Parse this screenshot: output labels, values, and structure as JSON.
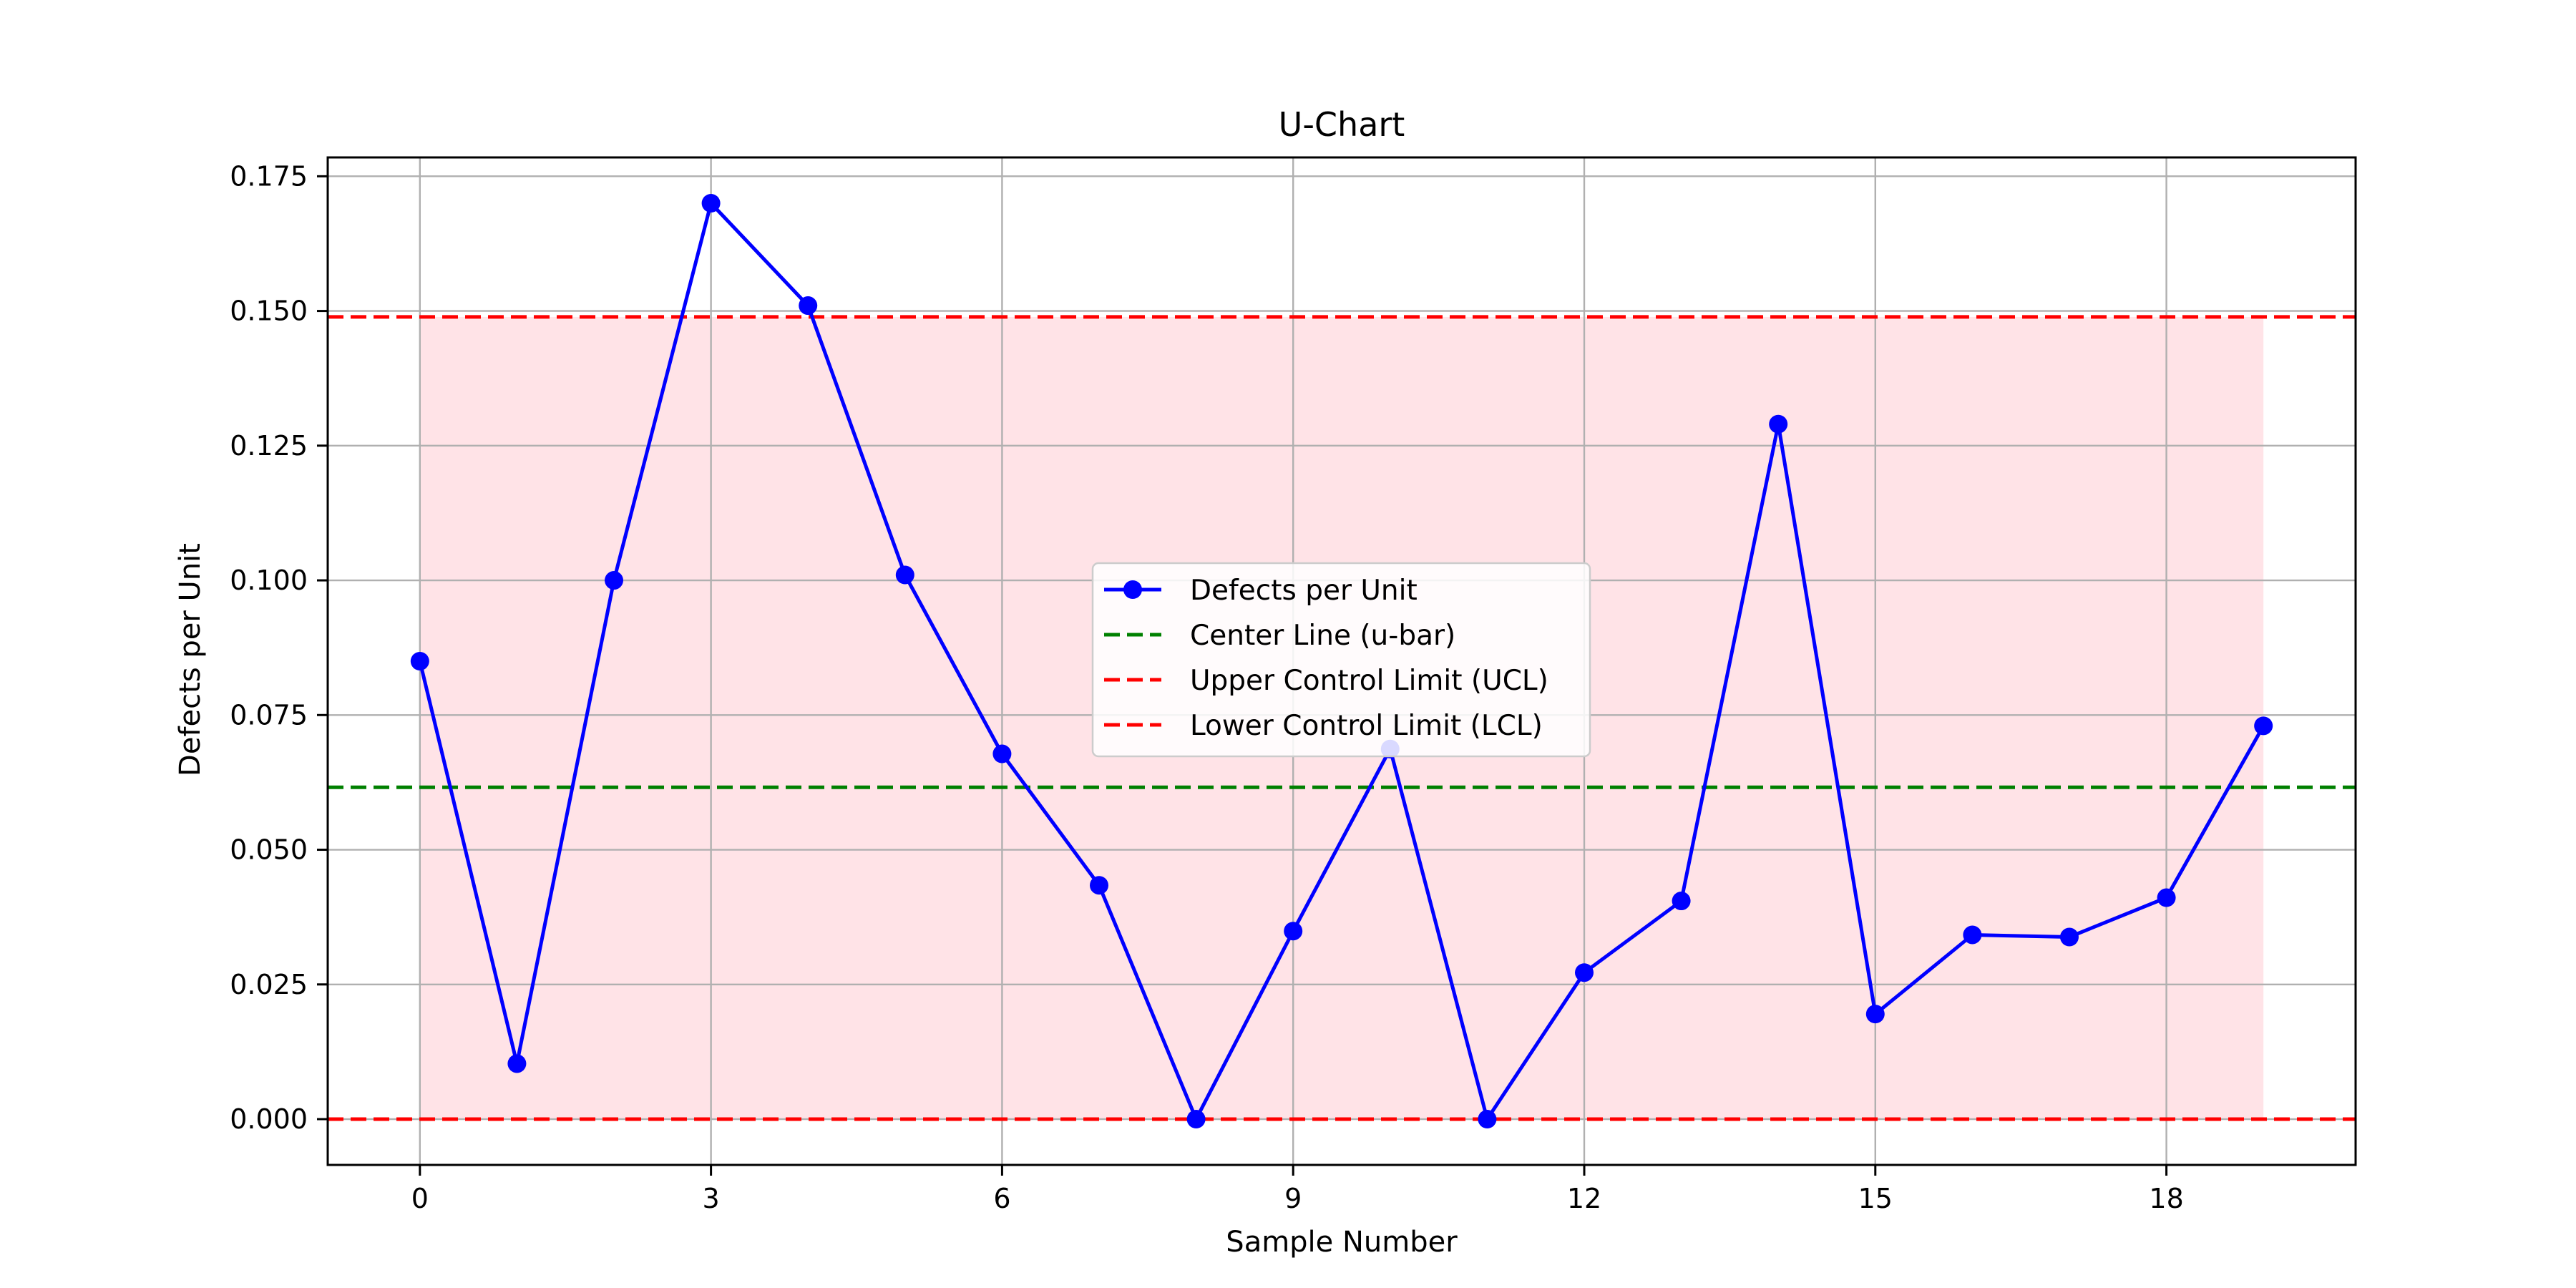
{
  "chart_data": {
    "type": "line",
    "title": "U-Chart",
    "xlabel": "Sample Number",
    "ylabel": "Defects per Unit",
    "xlim": [
      -0.95,
      19.95
    ],
    "ylim": [
      -0.0085,
      0.1785
    ],
    "x_ticks": [
      0,
      3,
      6,
      9,
      12,
      15,
      18
    ],
    "x_tick_labels": [
      "0",
      "3",
      "6",
      "9",
      "12",
      "15",
      "18"
    ],
    "y_ticks": [
      0,
      0.025,
      0.05,
      0.075,
      0.1,
      0.125,
      0.15,
      0.175
    ],
    "y_tick_labels": [
      "0.000",
      "0.025",
      "0.050",
      "0.075",
      "0.100",
      "0.125",
      "0.150",
      "0.175"
    ],
    "grid": true,
    "legend_position": "center",
    "x": [
      0,
      1,
      2,
      3,
      4,
      5,
      6,
      7,
      8,
      9,
      10,
      11,
      12,
      13,
      14,
      15,
      16,
      17,
      18,
      19
    ],
    "series": [
      {
        "name": "Defects per Unit",
        "color": "#0000ff",
        "style": "solid",
        "marker": "circle",
        "values": [
          0.085,
          0.0103,
          0.1,
          0.17,
          0.151,
          0.101,
          0.0678,
          0.0434,
          0.0,
          0.0349,
          0.0687,
          0.0,
          0.0272,
          0.0405,
          0.129,
          0.0195,
          0.0342,
          0.0338,
          0.0411,
          0.073
        ]
      }
    ],
    "reference_lines": [
      {
        "name": "Center Line (u-bar)",
        "value": 0.0616,
        "color": "#008000",
        "style": "dashed"
      },
      {
        "name": "Upper Control Limit (UCL)",
        "value": 0.1489,
        "color": "#ff0000",
        "style": "dashed"
      },
      {
        "name": "Lower Control Limit (LCL)",
        "value": 0.0,
        "color": "#ff0000",
        "style": "dashed"
      }
    ],
    "shaded_band": {
      "x_range": [
        0,
        19
      ],
      "y_range": [
        0.0,
        0.1489
      ],
      "color": "#ffb6c1"
    }
  }
}
